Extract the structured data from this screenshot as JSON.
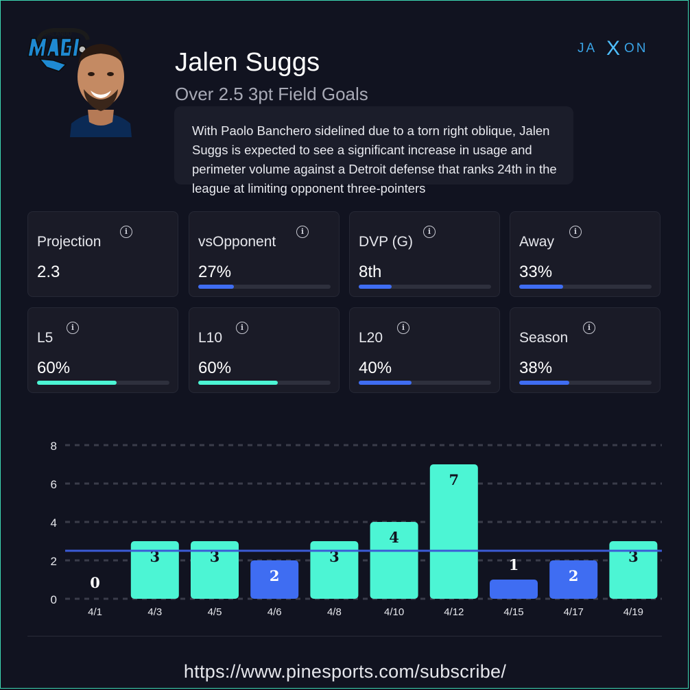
{
  "header": {
    "player_name": "Jalen Suggs",
    "prop_line": "Over 2.5 3pt Field Goals",
    "team_logo_text": "ORLANDO MAGIC",
    "brand_left": "JA",
    "brand_x": "X",
    "brand_right": "ON"
  },
  "blurb": {
    "text": "With Paolo Banchero sidelined due to a torn right oblique, Jalen Suggs is expected to see a significant increase in usage and perimeter volume against a Detroit defense that ranks 24th in the league at limiting opponent three-pointers"
  },
  "stats": [
    {
      "label": "Projection",
      "value": "2.3",
      "percent": null,
      "color": null
    },
    {
      "label": "vsOpponent",
      "value": "27%",
      "percent": 27,
      "color": "#3f6df2"
    },
    {
      "label": "DVP (G)",
      "value": "8th",
      "percent": 25,
      "color": "#3f6df2"
    },
    {
      "label": "Away",
      "value": "33%",
      "percent": 33,
      "color": "#3f6df2"
    },
    {
      "label": "L5",
      "value": "60%",
      "percent": 60,
      "color": "#4cf5d4"
    },
    {
      "label": "L10",
      "value": "60%",
      "percent": 60,
      "color": "#4cf5d4"
    },
    {
      "label": "L20",
      "value": "40%",
      "percent": 40,
      "color": "#3f6df2"
    },
    {
      "label": "Season",
      "value": "38%",
      "percent": 38,
      "color": "#3f6df2"
    }
  ],
  "colors": {
    "hit": "#4cf5d4",
    "miss": "#3f6df2",
    "line": "#3b5bd6",
    "background": "#111320"
  },
  "chart_data": {
    "type": "bar",
    "categories": [
      "4/1",
      "4/3",
      "4/5",
      "4/6",
      "4/8",
      "4/10",
      "4/12",
      "4/15",
      "4/17",
      "4/19"
    ],
    "values": [
      0,
      3,
      3,
      2,
      3,
      4,
      7,
      1,
      2,
      3
    ],
    "line_value": 2.5,
    "yticks": [
      0,
      2,
      4,
      6,
      8
    ],
    "ylim": [
      0,
      8
    ],
    "title": "",
    "xlabel": "",
    "ylabel": ""
  },
  "footer": {
    "url": "https://www.pinesports.com/subscribe/"
  }
}
